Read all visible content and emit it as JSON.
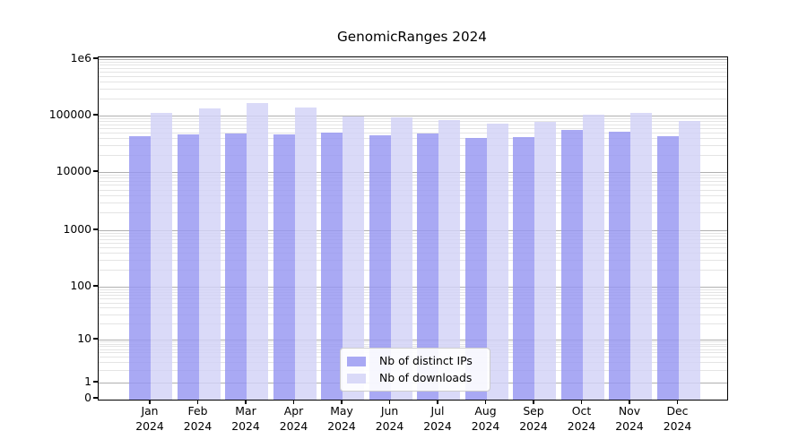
{
  "chart_data": {
    "type": "bar",
    "title": "GenomicRanges 2024",
    "categories": [
      "Jan 2024",
      "Feb 2024",
      "Mar 2024",
      "Apr 2024",
      "May 2024",
      "Jun 2024",
      "Jul 2024",
      "Aug 2024",
      "Sep 2024",
      "Oct 2024",
      "Nov 2024",
      "Dec 2024"
    ],
    "series": [
      {
        "name": "Nb of distinct IPs",
        "color": "#9696f2",
        "values": [
          43400,
          46200,
          47800,
          46200,
          50000,
          44800,
          47800,
          39700,
          41100,
          55200,
          52600,
          43600
        ]
      },
      {
        "name": "Nb of downloads",
        "color": "#d2d2f6",
        "values": [
          113400,
          135200,
          164000,
          139000,
          95000,
          92500,
          83000,
          71200,
          77000,
          103400,
          110700,
          80600
        ]
      }
    ],
    "y_axis": {
      "scale": "log-with-zero-baseline",
      "ylim": [
        0,
        1000000
      ],
      "tick_values": [
        0,
        1,
        10,
        100,
        1000,
        10000,
        100000,
        1000000
      ],
      "tick_labels": [
        "0",
        "1",
        "10",
        "100",
        "1000",
        "10000",
        "100000",
        "1e6"
      ],
      "minor_gridlines": true
    },
    "xlabel": "",
    "ylabel": "",
    "legend": {
      "position": "lower center",
      "entries": [
        "Nb of distinct IPs",
        "Nb of downloads"
      ]
    },
    "grid": {
      "major_color": "#b0b0b0",
      "minor_color": "#e4e4e4"
    },
    "bar_alpha": 0.82
  }
}
